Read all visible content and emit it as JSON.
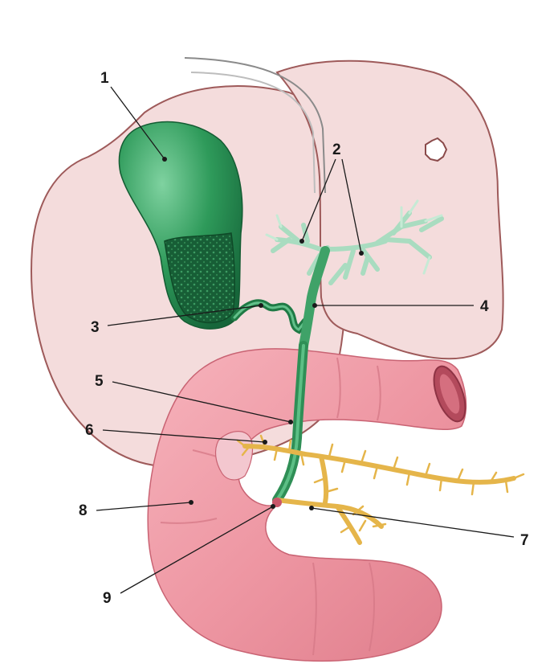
{
  "labels": {
    "l1": "1",
    "l2": "2",
    "l3": "3",
    "l4": "4",
    "l5": "5",
    "l6": "6",
    "l7": "7",
    "l8": "8",
    "l9": "9"
  },
  "colors": {
    "liver_fill": "#f4dcdc",
    "liver_outline": "#9e5a5a",
    "gallbladder": "#2e9a5a",
    "gallbladder_dark": "#1d6b3d",
    "bile_duct": "#3fa268",
    "hepatic_branches": "#a9dcc0",
    "pancreatic_duct": "#e5b54a",
    "duodenum": "#ef9aa6",
    "duodenum_shade": "#d97583"
  }
}
